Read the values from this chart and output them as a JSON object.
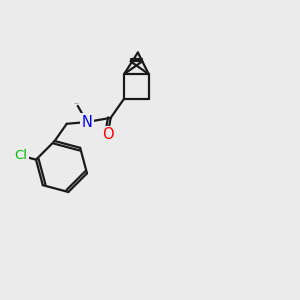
{
  "bg_color": "#ebebeb",
  "bond_color": "#1a1a1a",
  "bond_width": 1.6,
  "N_color": "#0000ff",
  "O_color": "#ff0000",
  "Cl_color": "#00bb00",
  "font_size": 9.5,
  "fig_width": 3.0,
  "fig_height": 3.0,
  "dpi": 100,
  "xlim": [
    0,
    10
  ],
  "ylim": [
    0,
    10
  ]
}
